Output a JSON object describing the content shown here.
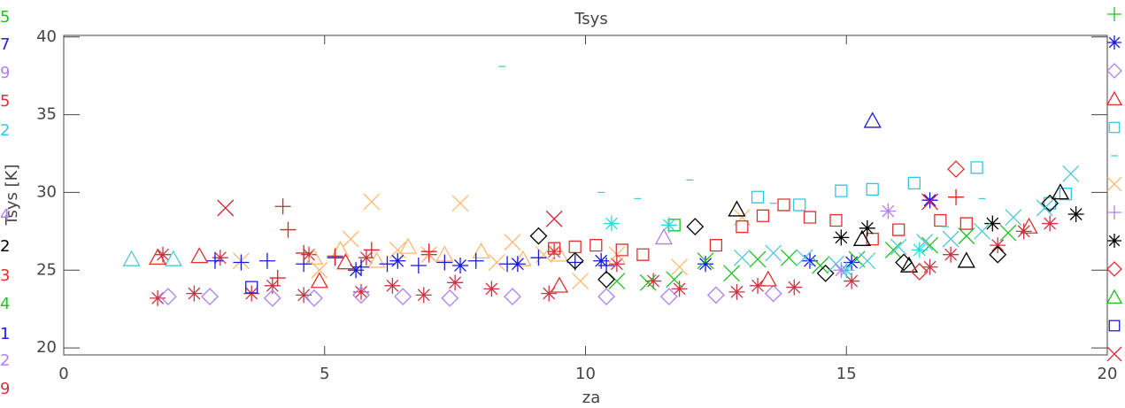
{
  "chart_data": {
    "type": "scatter",
    "title": "Tsys",
    "xlabel": "za",
    "ylabel": "Tsys [K]",
    "xlim": [
      0,
      20
    ],
    "ylim": [
      19.55,
      40.1
    ],
    "xticks": [
      0,
      5,
      10,
      15,
      20
    ],
    "yticks": [
      20,
      25,
      30,
      35,
      40
    ],
    "side_labels": [
      {
        "text": "5",
        "color": "#22c022"
      },
      {
        "text": "7",
        "color": "#2020e0"
      },
      {
        "text": "9",
        "color": "#b080f0"
      },
      {
        "text": "5",
        "color": "#e03040"
      },
      {
        "text": "2",
        "color": "#30c8e0"
      },
      {
        "text": "4",
        "color": "#b080f0"
      },
      {
        "text": "2",
        "color": "#000000"
      },
      {
        "text": "3",
        "color": "#e03030"
      },
      {
        "text": "4",
        "color": "#22c022"
      },
      {
        "text": "1",
        "color": "#2020e0"
      },
      {
        "text": "2",
        "color": "#b080f0"
      },
      {
        "text": "9",
        "color": "#cc3344"
      }
    ],
    "series": [
      {
        "marker": "asterisk",
        "color": "#cc3344",
        "x": [
          1.8,
          1.9,
          2.5,
          3.0,
          3.6,
          4.0,
          4.6,
          4.7,
          5.7,
          5.8,
          6.3,
          6.9,
          7.0,
          7.5,
          8.2,
          9.3,
          9.4,
          10.6,
          11.3,
          11.8,
          12.9,
          13.3,
          14.0,
          15.1,
          16.6,
          17.0,
          17.9,
          18.4,
          18.9
        ],
        "values": [
          23.2,
          26.0,
          23.5,
          25.8,
          23.5,
          24.0,
          23.4,
          26.0,
          23.6,
          25.8,
          24.0,
          23.4,
          26.0,
          24.2,
          23.8,
          23.5,
          26.2,
          25.4,
          24.3,
          23.8,
          23.6,
          24.0,
          23.9,
          24.3,
          25.2,
          26.0,
          26.6,
          27.5,
          28.0
        ]
      },
      {
        "marker": "x",
        "color": "#ffb870",
        "x": [
          3.4,
          4.9,
          5.5,
          5.9,
          6.4,
          7.0,
          7.6,
          8.3,
          8.6,
          9.2,
          9.9,
          10.6,
          11.8,
          13.0
        ],
        "values": [
          25.6,
          25.0,
          27.0,
          29.4,
          26.3,
          26.0,
          29.3,
          25.5,
          26.8,
          26.0,
          24.3,
          26.0,
          25.2,
          28.4
        ]
      },
      {
        "marker": "triangle",
        "color": "#ffb870",
        "x": [
          4.8,
          5.3,
          6.0,
          6.6,
          7.3,
          8.0,
          8.8,
          9.5
        ],
        "values": [
          25.8,
          26.3,
          25.6,
          26.5,
          26.0,
          26.2,
          25.7,
          26.0
        ]
      },
      {
        "marker": "square",
        "color": "#30c8e0",
        "x": [
          13.3,
          14.1,
          14.9,
          15.5,
          16.3,
          17.5,
          18.9,
          19.2
        ],
        "values": [
          29.7,
          29.2,
          30.1,
          30.2,
          30.6,
          31.6,
          29.3,
          29.9
        ]
      },
      {
        "marker": "square",
        "color": "#e03030",
        "x": [
          9.4,
          9.8,
          10.2,
          10.7,
          11.1,
          12.5,
          13.0,
          13.4,
          13.8,
          14.3,
          14.8,
          15.5,
          16.0,
          16.8,
          17.3
        ],
        "values": [
          26.4,
          26.5,
          26.6,
          26.3,
          26.0,
          26.6,
          27.8,
          28.5,
          29.2,
          28.4,
          28.2,
          27.0,
          27.6,
          28.2,
          28.0
        ]
      },
      {
        "marker": "plus",
        "color": "#1818e0",
        "x": [
          2.9,
          3.4,
          3.9,
          4.6,
          5.2,
          5.7,
          6.2,
          6.8,
          7.3,
          7.9,
          8.5,
          9.1,
          9.8,
          10.4
        ],
        "values": [
          25.6,
          25.5,
          25.6,
          25.4,
          25.8,
          25.2,
          25.4,
          25.3,
          25.5,
          25.6,
          25.4,
          25.8,
          25.5,
          25.3
        ]
      },
      {
        "marker": "asterisk",
        "color": "#1818e0",
        "x": [
          5.6,
          6.4,
          7.6,
          8.7,
          10.3,
          12.3,
          14.3,
          15.1,
          16.6
        ],
        "values": [
          25.0,
          25.6,
          25.3,
          25.4,
          25.6,
          25.4,
          25.6,
          25.5,
          29.5
        ]
      },
      {
        "marker": "x",
        "color": "#20c020",
        "x": [
          10.6,
          11.2,
          11.7,
          12.3,
          12.8,
          13.3,
          13.9,
          14.5,
          15.2,
          15.9,
          16.6,
          17.3,
          18.1
        ],
        "values": [
          24.3,
          24.2,
          24.4,
          25.6,
          24.8,
          25.7,
          25.8,
          25.3,
          25.7,
          26.3,
          26.6,
          27.2,
          27.4
        ]
      },
      {
        "marker": "square",
        "color": "#20c020",
        "x": [
          11.7
        ],
        "values": [
          27.9
        ]
      },
      {
        "marker": "diamond",
        "color": "#b080f0",
        "x": [
          2.0,
          2.8,
          4.0,
          4.8,
          5.7,
          6.5,
          7.4,
          8.6,
          10.4,
          11.6,
          12.5,
          13.6
        ],
        "values": [
          23.3,
          23.3,
          23.2,
          23.2,
          23.4,
          23.3,
          23.2,
          23.3,
          23.3,
          23.3,
          23.4,
          23.5
        ]
      },
      {
        "marker": "diamond",
        "color": "#000000",
        "x": [
          9.1,
          9.8,
          10.4,
          12.1,
          14.6,
          16.1,
          17.9,
          18.9
        ],
        "values": [
          27.2,
          25.6,
          24.4,
          27.8,
          24.8,
          25.5,
          26.0,
          29.3
        ]
      },
      {
        "marker": "triangle",
        "color": "#000000",
        "x": [
          12.9,
          15.3,
          16.2,
          17.3,
          19.1
        ],
        "values": [
          28.9,
          27.0,
          25.3,
          25.6,
          30.0
        ]
      },
      {
        "marker": "asterisk",
        "color": "#000000",
        "x": [
          14.9,
          15.4,
          17.8,
          19.4
        ],
        "values": [
          27.1,
          27.7,
          28.0,
          28.6
        ]
      },
      {
        "marker": "x",
        "color": "#50c8d8",
        "x": [
          13.0,
          13.6,
          14.2,
          14.8,
          15.4,
          16.0,
          16.5,
          17.0,
          17.6,
          18.2,
          18.8,
          19.3
        ],
        "values": [
          25.8,
          26.1,
          25.8,
          25.4,
          25.6,
          26.5,
          26.8,
          27.0,
          27.5,
          28.4,
          29.0,
          31.2
        ]
      },
      {
        "marker": "triangle",
        "color": "#50c8d8",
        "x": [
          1.3,
          2.1
        ],
        "values": [
          25.7,
          25.7
        ]
      },
      {
        "marker": "asterisk",
        "color": "#30d8e0",
        "x": [
          10.5,
          11.6,
          15.0,
          16.4
        ],
        "values": [
          28.0,
          27.9,
          25.0,
          26.3
        ]
      },
      {
        "marker": "triangle",
        "color": "#1818e0",
        "x": [
          15.5
        ],
        "values": [
          34.6
        ]
      },
      {
        "marker": "square",
        "color": "#1818e0",
        "x": [
          3.6
        ],
        "values": [
          23.9
        ]
      },
      {
        "marker": "plus",
        "color": "#e02020",
        "x": [
          4.2,
          4.3,
          4.1,
          4.6,
          5.2,
          5.9,
          7.0,
          17.1
        ],
        "values": [
          29.1,
          27.6,
          24.5,
          26.1,
          25.9,
          26.3,
          26.2,
          29.7
        ]
      },
      {
        "marker": "dash",
        "color": "#50c8d8",
        "x": [
          8.4,
          10.3,
          11.0,
          12.0,
          13.6,
          16.9,
          17.6
        ],
        "values": [
          38.1,
          30.0,
          29.6,
          30.8,
          29.3,
          27.8,
          29.6
        ]
      },
      {
        "marker": "x",
        "color": "#cc2233",
        "x": [
          3.1,
          9.4,
          16.6
        ],
        "values": [
          29.0,
          28.3,
          29.4
        ]
      },
      {
        "marker": "diamond",
        "color": "#e03030",
        "x": [
          17.1,
          16.4
        ],
        "values": [
          31.5,
          24.9
        ]
      },
      {
        "marker": "triangle",
        "color": "#e03030",
        "x": [
          1.8,
          2.6,
          4.9,
          5.4,
          9.5,
          13.5,
          18.5
        ],
        "values": [
          25.8,
          25.9,
          24.3,
          25.5,
          24.0,
          24.4,
          27.8
        ]
      },
      {
        "marker": "asterisk",
        "color": "#b080f0",
        "x": [
          15.8,
          14.9
        ],
        "values": [
          28.8,
          25.0
        ]
      },
      {
        "marker": "triangle",
        "color": "#b080f0",
        "x": [
          11.5
        ],
        "values": [
          27.1
        ]
      }
    ]
  }
}
